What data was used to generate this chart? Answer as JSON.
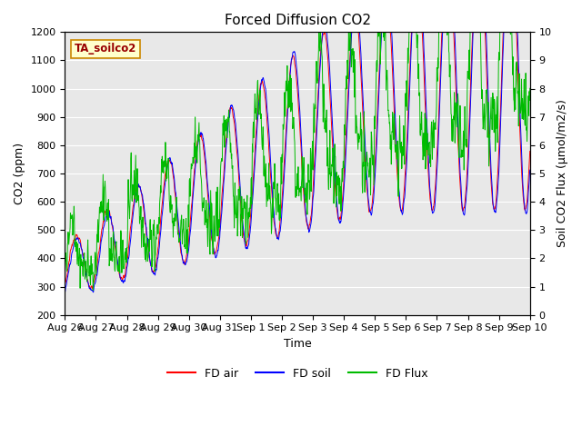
{
  "title": "Forced Diffusion CO2",
  "xlabel": "Time",
  "ylabel_left": "CO2 (ppm)",
  "ylabel_right": "Soil CO2 Flux (μmol/m2/s)",
  "annotation": "TA_soilco2",
  "ylim_left": [
    200,
    1200
  ],
  "ylim_right": [
    0.0,
    10.0
  ],
  "yticks_left": [
    200,
    300,
    400,
    500,
    600,
    700,
    800,
    900,
    1000,
    1100,
    1200
  ],
  "yticks_right": [
    0.0,
    1.0,
    2.0,
    3.0,
    4.0,
    5.0,
    6.0,
    7.0,
    8.0,
    9.0,
    10.0
  ],
  "xtick_labels": [
    "Aug 26",
    "Aug 27",
    "Aug 28",
    "Aug 29",
    "Aug 30",
    "Aug 31",
    "Sep 1",
    "Sep 2",
    "Sep 3",
    "Sep 4",
    "Sep 5",
    "Sep 6",
    "Sep 7",
    "Sep 8",
    "Sep 9",
    "Sep 10"
  ],
  "color_air": "#ff0000",
  "color_soil": "#0000ff",
  "color_flux": "#00bb00",
  "background_color": "#e8e8e8",
  "legend_labels": [
    "FD air",
    "FD soil",
    "FD Flux"
  ],
  "title_fontsize": 11,
  "axis_label_fontsize": 9,
  "tick_fontsize": 8
}
